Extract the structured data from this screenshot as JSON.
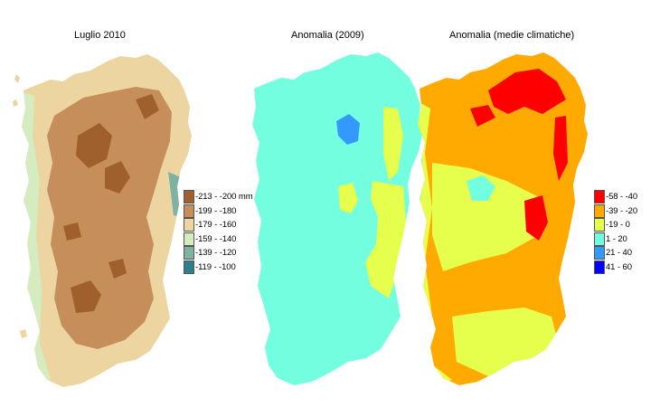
{
  "maps": [
    {
      "title": "Luglio 2010",
      "legend": [
        {
          "label": "-213 - -200 mm",
          "color": "#a0602e"
        },
        {
          "label": "-199 - -180",
          "color": "#c68e5a"
        },
        {
          "label": "-179 - -160",
          "color": "#edd5a1"
        },
        {
          "label": "-159 - -140",
          "color": "#d5ebc0"
        },
        {
          "label": "-139 - -120",
          "color": "#7eb3a3"
        },
        {
          "label": "-119 - -100",
          "color": "#2f7e8c"
        }
      ]
    },
    {
      "title": "Anomalia (2009)",
      "legend": []
    },
    {
      "title": "Anomalia (medie climatiche)",
      "legend": [
        {
          "label": "-58 - -40",
          "color": "#ff0000"
        },
        {
          "label": "-39 - -20",
          "color": "#ffaa00"
        },
        {
          "label": "-19 - 0",
          "color": "#e6ff4d"
        },
        {
          "label": "1 - 20",
          "color": "#73ffdf"
        },
        {
          "label": "21 - 40",
          "color": "#3399ff"
        },
        {
          "label": "41 - 60",
          "color": "#0000ff"
        }
      ]
    }
  ]
}
